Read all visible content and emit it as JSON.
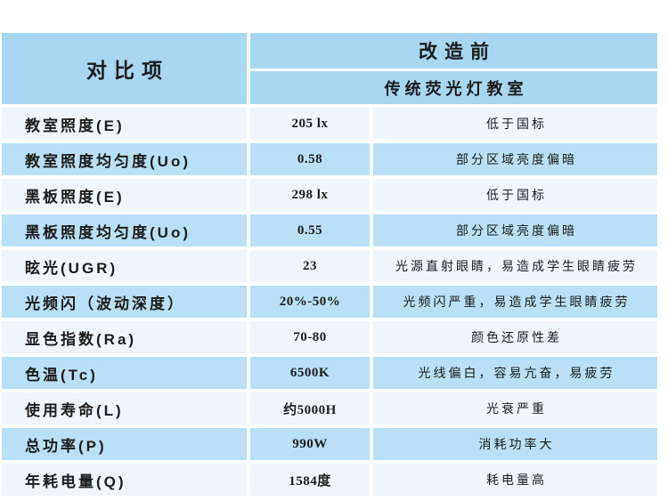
{
  "table": {
    "header": {
      "compare_item_label": "对比项",
      "group_title": "改造前",
      "group_subtitle": "传统荧光灯教室"
    },
    "rows": [
      {
        "item": "教室照度(E)",
        "value": "205 lx",
        "note": "低于国标"
      },
      {
        "item": "教室照度均匀度(Uo)",
        "value": "0.58",
        "note": "部分区域亮度偏暗"
      },
      {
        "item": "黑板照度(E)",
        "value": "298 lx",
        "note": "低于国标"
      },
      {
        "item": "黑板照度均匀度(Uo)",
        "value": "0.55",
        "note": "部分区域亮度偏暗"
      },
      {
        "item": "眩光(UGR)",
        "value": "23",
        "note": "光源直射眼睛，易造成学生眼睛疲劳"
      },
      {
        "item": "光频闪（波动深度）",
        "value": "20%-50%",
        "note": "光频闪严重，易造成学生眼睛疲劳"
      },
      {
        "item": "显色指数(Ra)",
        "value": "70-80",
        "note": "颜色还原性差"
      },
      {
        "item": "色温(Tc)",
        "value": "6500K",
        "note": "光线偏白，容易亢奋，易疲劳"
      },
      {
        "item": "使用寿命(L)",
        "value": "约5000H",
        "note": "光衰严重"
      },
      {
        "item": "总功率(P)",
        "value": "990W",
        "note": "消耗功率大"
      },
      {
        "item": "年耗电量(Q)",
        "value": "1584度",
        "note": "耗电量高"
      }
    ],
    "colors": {
      "header_bg": "#a7d7f1",
      "row_dark": "#b9e0f5",
      "row_light": "#eff7fd",
      "text": "#1c1c1c"
    }
  }
}
